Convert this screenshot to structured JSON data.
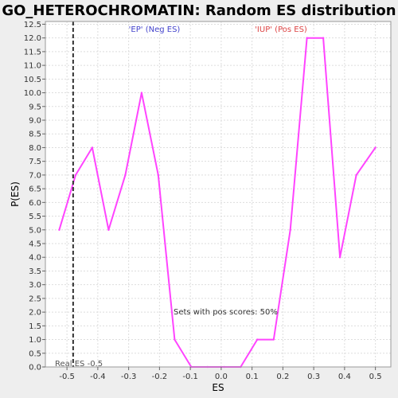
{
  "chart_data": {
    "type": "line",
    "title": "GO_HETEROCHROMATIN: Random ES distribution",
    "xlabel": "ES",
    "ylabel": "P(ES)",
    "xlim": [
      -0.57,
      0.55
    ],
    "ylim": [
      0,
      12.6
    ],
    "x_ticks": [
      -0.5,
      -0.4,
      -0.3,
      -0.2,
      -0.1,
      0.0,
      0.1,
      0.2,
      0.3,
      0.4,
      0.5
    ],
    "x_tick_labels": [
      "-0.5",
      "-0.4",
      "-0.3",
      "-0.2",
      "-0.1",
      "0.0",
      "0.1",
      "0.2",
      "0.3",
      "0.4",
      "0.5"
    ],
    "y_ticks": [
      0.0,
      0.5,
      1.0,
      1.5,
      2.0,
      2.5,
      3.0,
      3.5,
      4.0,
      4.5,
      5.0,
      5.5,
      6.0,
      6.5,
      7.0,
      7.5,
      8.0,
      8.5,
      9.0,
      9.5,
      10.0,
      10.5,
      11.0,
      11.5,
      12.0,
      12.5
    ],
    "y_tick_labels": [
      "0.0",
      "0.5",
      "1.0",
      "1.5",
      "2.0",
      "2.5",
      "3.0",
      "3.5",
      "4.0",
      "4.5",
      "5.0",
      "5.5",
      "6.0",
      "6.5",
      "7.0",
      "7.5",
      "8.0",
      "8.5",
      "9.0",
      "9.5",
      "10.0",
      "10.5",
      "11.0",
      "11.5",
      "12.0",
      "12.5"
    ],
    "grid": true,
    "series": [
      {
        "color": "#ff44ff",
        "x": [
          -0.525,
          -0.472,
          -0.418,
          -0.365,
          -0.311,
          -0.258,
          -0.204,
          -0.151,
          -0.097,
          -0.044,
          0.01,
          0.063,
          0.117,
          0.17,
          0.224,
          0.278,
          0.331,
          0.385,
          0.438,
          0.5
        ],
        "y": [
          5.0,
          7.0,
          8.0,
          5.0,
          7.0,
          10.0,
          7.0,
          1.0,
          0.0,
          0.0,
          0.0,
          0.0,
          1.0,
          1.0,
          5.0,
          12.0,
          12.0,
          4.0,
          7.0,
          8.0
        ]
      }
    ],
    "real_es": {
      "value": -0.48,
      "label": "Real ES -0.5",
      "line_color": "#333333"
    },
    "annotations": {
      "neg_label": "'EP' (Neg ES)",
      "neg_color": "#4444cc",
      "pos_label": "'IUP' (Pos ES)",
      "pos_color": "#dd4444",
      "sets_label": "Sets with pos scores: 50%"
    }
  }
}
